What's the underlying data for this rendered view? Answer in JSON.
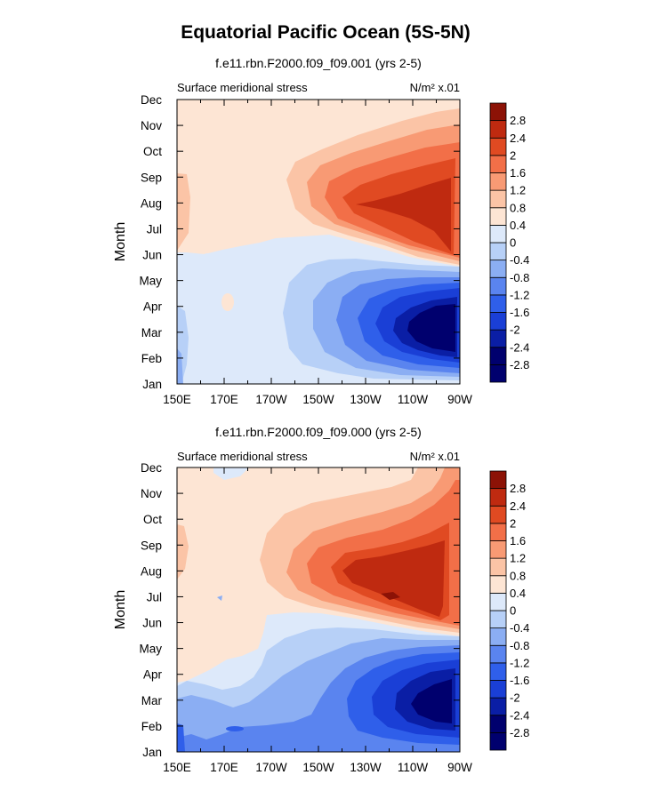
{
  "figure": {
    "title": "Equatorial Pacific Ocean (5S-5N)"
  },
  "chart_data": [
    {
      "type": "heatmap",
      "subtitle": "f.e11.rbn.F2000.f09_f09.001 (yrs 2-5)",
      "left_label": "Surface meridional stress",
      "units_label": "N/m² x.01",
      "ylabel": "Month",
      "xlabel": "",
      "x_ticks": [
        "150E",
        "170E",
        "170W",
        "150W",
        "130W",
        "110W",
        "90W"
      ],
      "y_ticks": [
        "Jan",
        "Feb",
        "Mar",
        "Apr",
        "May",
        "Jun",
        "Jul",
        "Aug",
        "Sep",
        "Oct",
        "Nov",
        "Dec"
      ],
      "x_range": [
        150,
        270
      ],
      "levels": [
        -2.8,
        -2.4,
        -2,
        -1.6,
        -1.2,
        -0.8,
        -0.4,
        0,
        0.4,
        0.8,
        1.2,
        1.6,
        2,
        2.4,
        2.8
      ],
      "colorbar_labels": [
        "2.8",
        "2.4",
        "2",
        "1.6",
        "1.2",
        "0.8",
        "0.4",
        "0",
        "-0.4",
        "-0.8",
        "-1.2",
        "-1.6",
        "-2",
        "-2.4",
        "-2.8"
      ]
    },
    {
      "type": "heatmap",
      "subtitle": "f.e11.rbn.F2000.f09_f09.000 (yrs 2-5)",
      "left_label": "Surface meridional stress",
      "units_label": "N/m² x.01",
      "ylabel": "Month",
      "xlabel": "",
      "x_ticks": [
        "150E",
        "170E",
        "170W",
        "150W",
        "130W",
        "110W",
        "90W"
      ],
      "y_ticks": [
        "Jan",
        "Feb",
        "Mar",
        "Apr",
        "May",
        "Jun",
        "Jul",
        "Aug",
        "Sep",
        "Oct",
        "Nov",
        "Dec"
      ],
      "x_range": [
        150,
        270
      ],
      "levels": [
        -2.8,
        -2.4,
        -2,
        -1.6,
        -1.2,
        -0.8,
        -0.4,
        0,
        0.4,
        0.8,
        1.2,
        1.6,
        2,
        2.4,
        2.8
      ],
      "colorbar_labels": [
        "2.8",
        "2.4",
        "2",
        "1.6",
        "1.2",
        "0.8",
        "0.4",
        "0",
        "-0.4",
        "-0.8",
        "-1.2",
        "-1.6",
        "-2",
        "-2.4",
        "-2.8"
      ]
    }
  ],
  "colors": {
    "scale": [
      "#00006e",
      "#0a1ea5",
      "#1a3fd6",
      "#2f5fea",
      "#5a84ef",
      "#8baef3",
      "#b7d0f7",
      "#dde9fa",
      "#fde5d4",
      "#fbc4a6",
      "#f89a74",
      "#f26f48",
      "#e04a22",
      "#bf2a10",
      "#8c1206"
    ]
  }
}
